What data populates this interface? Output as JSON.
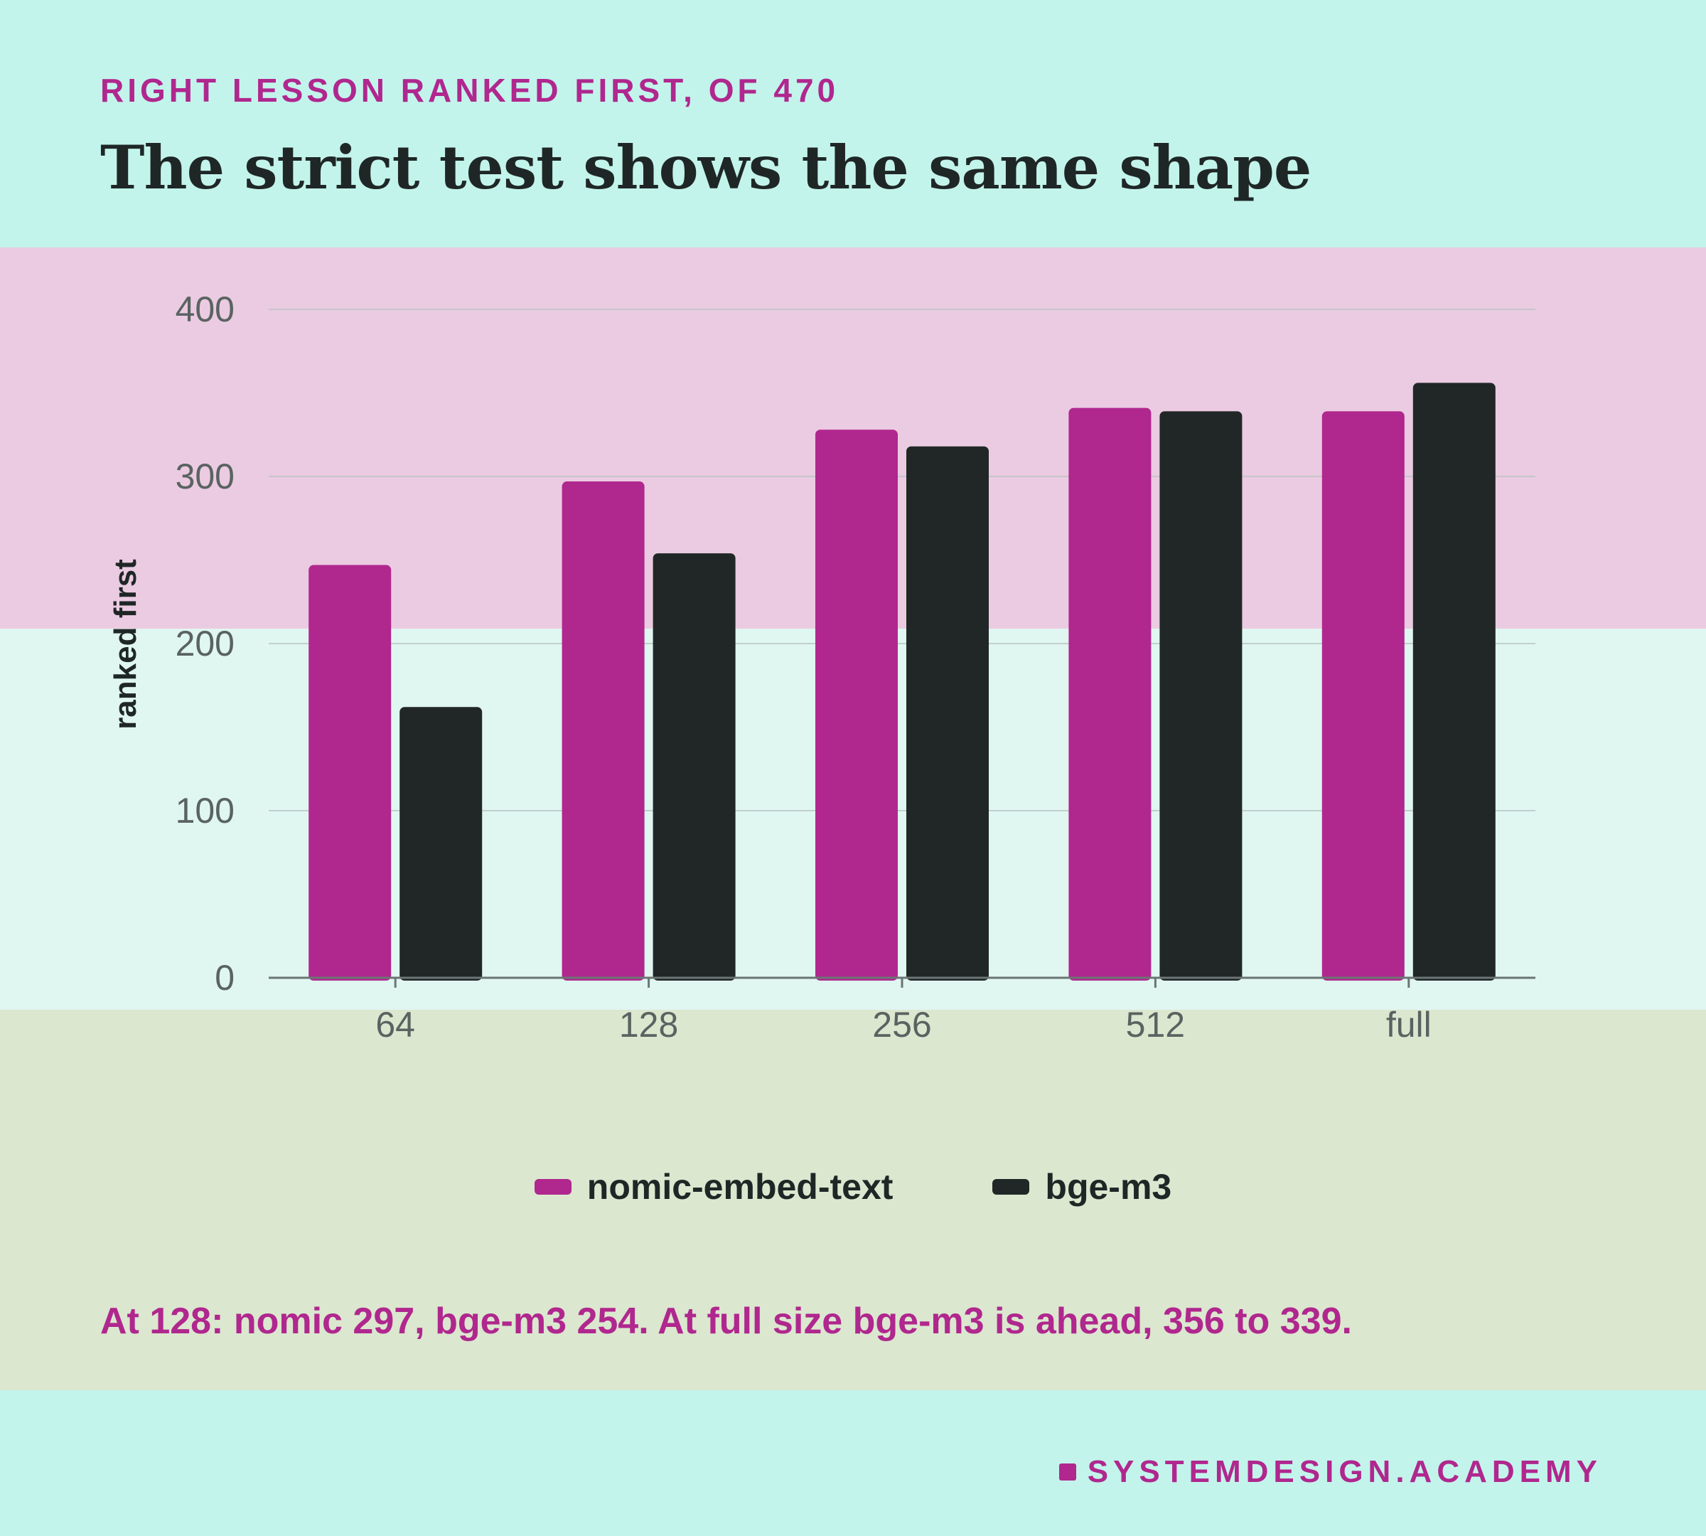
{
  "header": {
    "eyebrow": "RIGHT LESSON RANKED FIRST, OF 470",
    "title": "The strict test shows the same shape"
  },
  "chart_data": {
    "type": "bar",
    "categories": [
      "64",
      "128",
      "256",
      "512",
      "full"
    ],
    "series": [
      {
        "name": "nomic-embed-text",
        "values": [
          247,
          297,
          328,
          341,
          339
        ],
        "color": "#b0278e"
      },
      {
        "name": "bge-m3",
        "values": [
          162,
          254,
          318,
          339,
          356
        ],
        "color": "#212726"
      }
    ],
    "ylabel": "ranked first",
    "xlabel": "",
    "ylim": [
      0,
      400
    ],
    "yticks": [
      0,
      100,
      200,
      300,
      400
    ],
    "grid": true,
    "legend": "bottom-center"
  },
  "annotation": "At 128: nomic 297, bge-m3 254. At full size bge-m3 is ahead, 356 to 339.",
  "brand": "SYSTEMDESIGN.ACADEMY"
}
